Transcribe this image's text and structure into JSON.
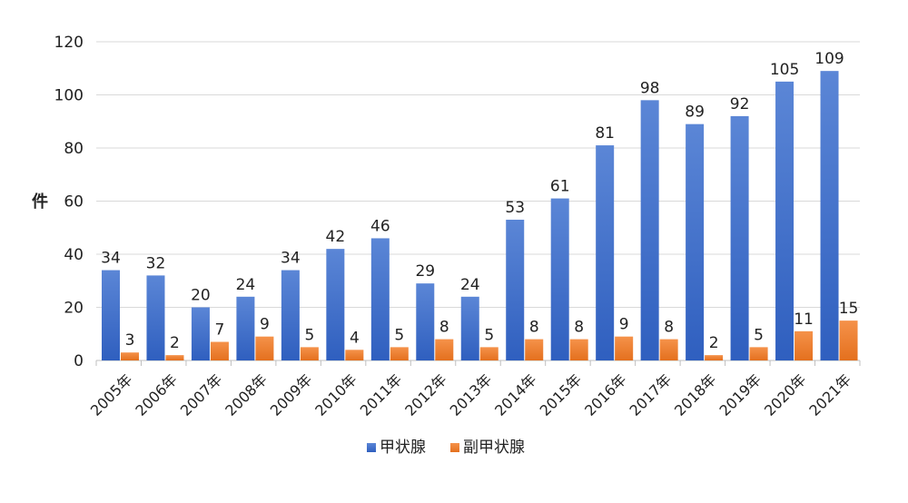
{
  "chart_data": {
    "type": "bar",
    "title": "",
    "xlabel": "",
    "ylabel": "件",
    "ylim": [
      0,
      120
    ],
    "yticks": [
      0,
      20,
      40,
      60,
      80,
      100,
      120
    ],
    "grid": true,
    "legend_position": "bottom",
    "categories": [
      "2005年",
      "2006年",
      "2007年",
      "2008年",
      "2009年",
      "2010年",
      "2011年",
      "2012年",
      "2013年",
      "2014年",
      "2015年",
      "2016年",
      "2017年",
      "2018年",
      "2019年",
      "2020年",
      "2021年"
    ],
    "series": [
      {
        "name": "甲状腺",
        "color": "#4472c4",
        "values": [
          34,
          32,
          20,
          24,
          34,
          42,
          46,
          29,
          24,
          53,
          61,
          81,
          98,
          89,
          92,
          105,
          109
        ]
      },
      {
        "name": "副甲状腺",
        "color": "#ed7d31",
        "values": [
          3,
          2,
          7,
          9,
          5,
          4,
          5,
          8,
          5,
          8,
          8,
          9,
          8,
          2,
          5,
          11,
          15
        ]
      }
    ]
  }
}
